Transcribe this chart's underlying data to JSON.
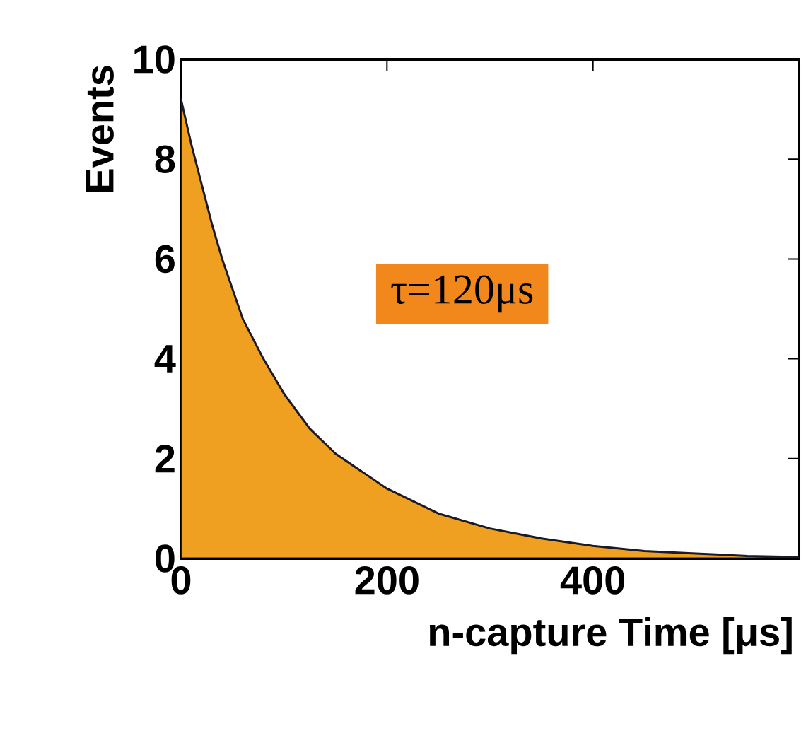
{
  "chart_data": {
    "type": "area",
    "xlabel": "n-capture Time [μs]",
    "ylabel": "Events",
    "x": [
      0,
      10,
      20,
      30,
      40,
      60,
      80,
      100,
      125,
      150,
      200,
      250,
      300,
      350,
      400,
      450,
      500,
      550,
      600
    ],
    "series": [
      {
        "color": "#f0a020",
        "values": [
          9.2,
          8.3,
          7.5,
          6.7,
          6.0,
          4.8,
          4.0,
          3.3,
          2.6,
          2.1,
          1.4,
          0.9,
          0.6,
          0.4,
          0.25,
          0.15,
          0.1,
          0.05,
          0.03
        ]
      }
    ],
    "xlim": [
      0,
      600
    ],
    "ylim": [
      0,
      10
    ],
    "xticks": [
      0,
      200,
      400
    ],
    "yticks": [
      0,
      2,
      4,
      6,
      8,
      10
    ],
    "annotations": [
      "τ=120μs"
    ]
  }
}
